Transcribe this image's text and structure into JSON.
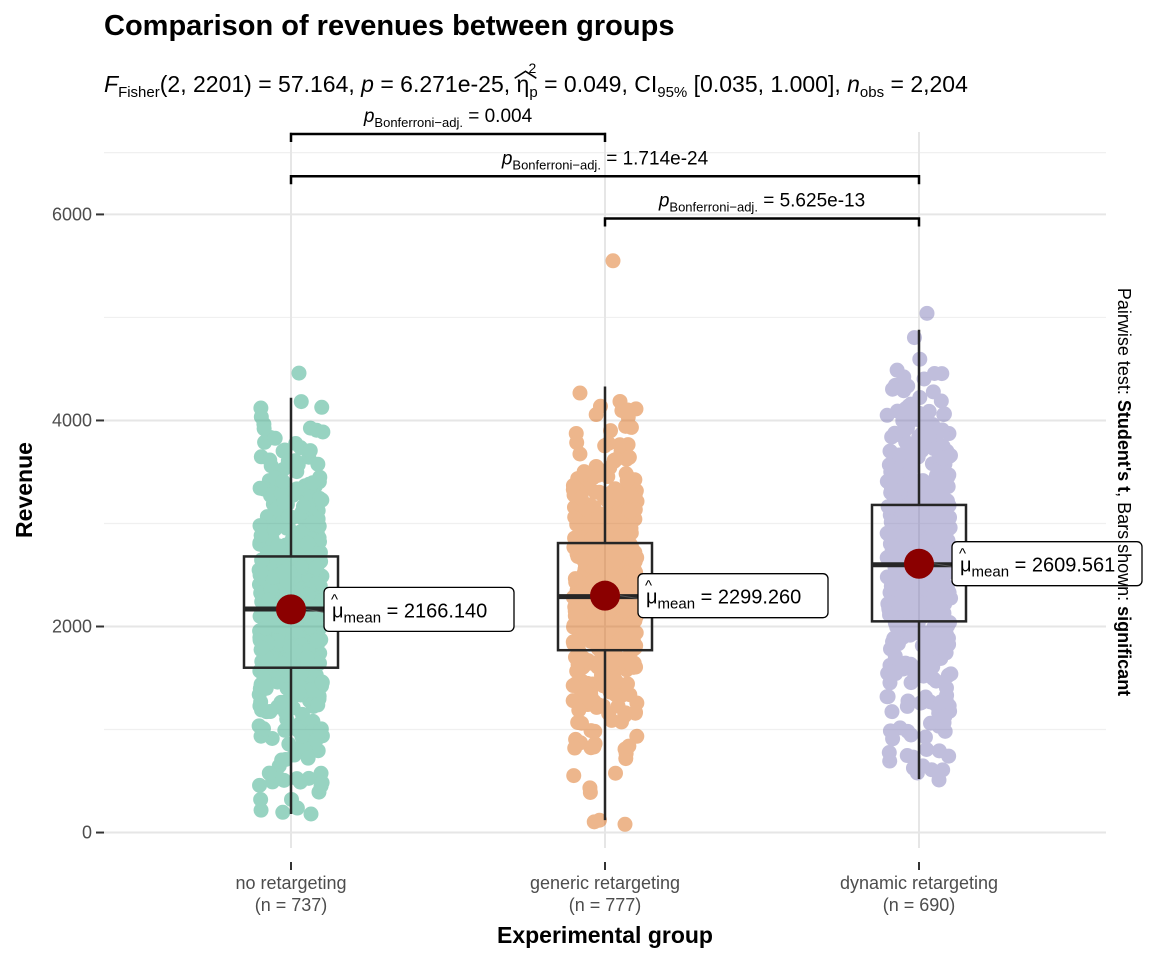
{
  "chart_data": {
    "type": "box-violin-scatter",
    "title": "Comparison of revenues between groups",
    "subtitle": {
      "f_label": "F",
      "f_sub": "Fisher",
      "f_args": "(2, 2201)",
      "f_value": " = 57.164, ",
      "p_label": "p",
      "p_value": " = 6.271e-25, ",
      "eta_symbol": "η",
      "eta_sup": "2",
      "eta_sub": "p",
      "eta_value": " = 0.049, CI",
      "ci_sub": "95%",
      "ci_value": " [0.035, 1.000], ",
      "n_label": "n",
      "n_sub": "obs",
      "n_value": " = 2,204"
    },
    "xlabel": "Experimental group",
    "ylabel": "Revenue",
    "ylim": [
      -150,
      6800
    ],
    "yticks": [
      0,
      2000,
      4000,
      6000
    ],
    "ytick_labels": [
      "0",
      "2000",
      "4000",
      "6000"
    ],
    "categories": [
      "no retargeting",
      "generic retargeting",
      "dynamic retargeting"
    ],
    "category_n": [
      "(n = 737)",
      "(n = 777)",
      "(n = 690)"
    ],
    "colors": [
      "#1b9e77",
      "#d95f02",
      "#7570b3"
    ],
    "mean_point_color": "#8b0000",
    "groups": [
      {
        "name": "no retargeting",
        "n": 737,
        "mean": 2166.14,
        "mean_label": " = 2166.140",
        "q1": 1600,
        "median": 2170,
        "q3": 2680,
        "whisker_low": 180,
        "whisker_high": 4220,
        "data_min": 180,
        "data_max": 4460
      },
      {
        "name": "generic retargeting",
        "n": 777,
        "mean": 2299.26,
        "mean_label": " = 2299.260",
        "q1": 1770,
        "median": 2290,
        "q3": 2810,
        "whisker_low": 120,
        "whisker_high": 4330,
        "data_min": 80,
        "data_max": 5550
      },
      {
        "name": "dynamic retargeting",
        "n": 690,
        "mean": 2609.561,
        "mean_label": " = 2609.561",
        "q1": 2050,
        "median": 2600,
        "q3": 3180,
        "whisker_low": 520,
        "whisker_high": 4880,
        "data_min": 510,
        "data_max": 5040
      }
    ],
    "mean_symbol": "μ",
    "mean_sub": "mean",
    "pairwise": [
      {
        "from": 0,
        "to": 1,
        "y": 6780,
        "label_p": "p",
        "label_sub": "Bonferroni−adj.",
        "label_value": " = 0.004"
      },
      {
        "from": 0,
        "to": 2,
        "y": 6370,
        "label_p": "p",
        "label_sub": "Bonferroni−adj.",
        "label_value": " = 1.714e-24"
      },
      {
        "from": 1,
        "to": 2,
        "y": 5960,
        "label_p": "p",
        "label_sub": "Bonferroni−adj.",
        "label_value": " = 5.625e-13"
      }
    ],
    "side_caption": {
      "part1": "Pairwise test: ",
      "part2": "Student's t",
      "part3": ", Bars shown: ",
      "part4": "significant"
    },
    "grid": true,
    "legend": "none"
  }
}
